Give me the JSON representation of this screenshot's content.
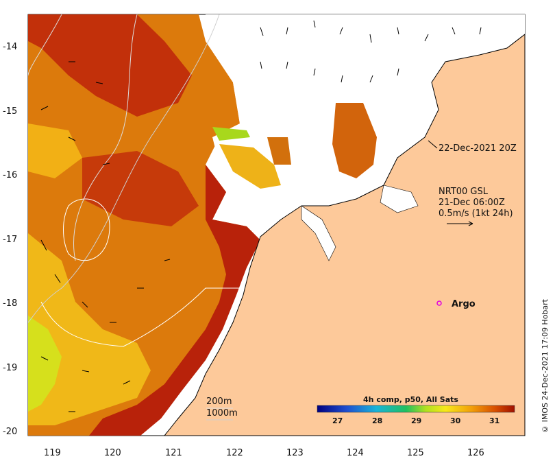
{
  "map": {
    "title_overlay": "22-Dec-2021 20Z",
    "current_product": "NRT00 GSL",
    "current_time": "21-Dec 06:00Z",
    "vector_scale": "0.5m/s (1kt 24h)",
    "argo_label": "Argo",
    "contour_legend": [
      "200m",
      "1000m"
    ],
    "colorbar_title": "4h comp, p50, All Sats",
    "credit": "© IMOS 24-Dec-2021 17:09 Hobart",
    "lon_ticks": [
      "119",
      "120",
      "121",
      "122",
      "123",
      "124",
      "125",
      "126"
    ],
    "lat_ticks": [
      "-14",
      "-15",
      "-16",
      "-17",
      "-18",
      "-19",
      "-20"
    ],
    "colorbar_ticks": [
      "27",
      "28",
      "29",
      "30",
      "31"
    ],
    "colors": {
      "land": "#fdc99a",
      "sst_hot": "#b01a00",
      "sst_warm": "#e6860a",
      "sst_mid": "#f2c319",
      "sst_cool": "#c8e61a",
      "argo": "#e000e0"
    }
  }
}
